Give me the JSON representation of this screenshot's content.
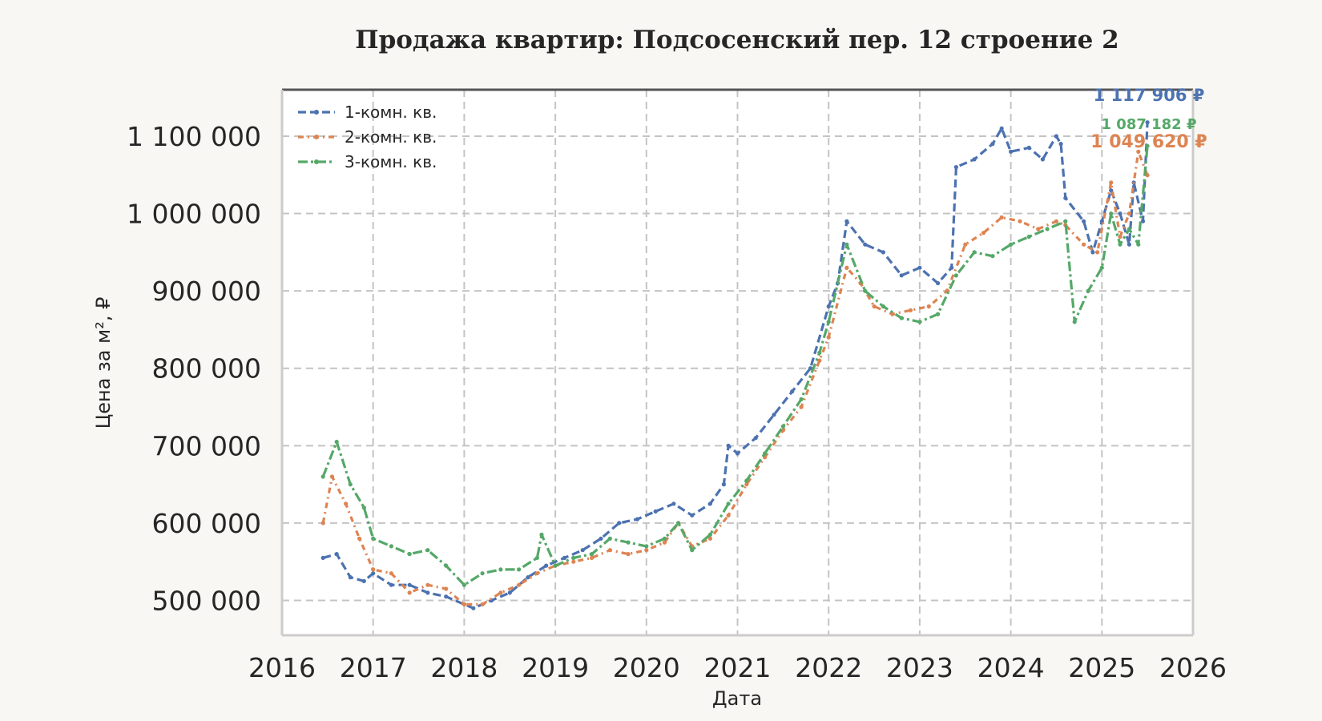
{
  "chart_data": {
    "type": "line",
    "title": "Продажа квартир: Подсосенский пер. 12 строение 2",
    "xlabel": "Дата",
    "ylabel": "Цена за м², ₽",
    "xlim": [
      2016.0,
      2026.0
    ],
    "ylim": [
      455000,
      1160000
    ],
    "x_ticks": [
      "2016",
      "2017",
      "2018",
      "2019",
      "2020",
      "2021",
      "2022",
      "2023",
      "2024",
      "2025",
      "2026"
    ],
    "y_ticks": [
      "500 000",
      "600 000",
      "700 000",
      "800 000",
      "900 000",
      "1 000 000",
      "1 100 000"
    ],
    "y_tick_values": [
      500000,
      600000,
      700000,
      800000,
      900000,
      1000000,
      1100000
    ],
    "grid": true,
    "legend_position": "top-left",
    "series": [
      {
        "name": "1-комн. кв.",
        "color": "#4c72b0",
        "end_label": "1 117 906 ₽",
        "x": [
          2016.45,
          2016.6,
          2016.75,
          2016.9,
          2017.0,
          2017.2,
          2017.4,
          2017.6,
          2017.8,
          2018.0,
          2018.1,
          2018.3,
          2018.5,
          2018.7,
          2018.9,
          2019.1,
          2019.3,
          2019.5,
          2019.7,
          2019.9,
          2020.1,
          2020.3,
          2020.5,
          2020.7,
          2020.85,
          2020.9,
          2021.0,
          2021.2,
          2021.4,
          2021.6,
          2021.8,
          2022.0,
          2022.1,
          2022.2,
          2022.4,
          2022.6,
          2022.8,
          2023.0,
          2023.2,
          2023.35,
          2023.4,
          2023.6,
          2023.8,
          2023.9,
          2024.0,
          2024.2,
          2024.35,
          2024.5,
          2024.55,
          2024.6,
          2024.8,
          2024.9,
          2025.0,
          2025.1,
          2025.2,
          2025.3,
          2025.35,
          2025.45,
          2025.5
        ],
        "y": [
          555000,
          560000,
          530000,
          525000,
          535000,
          520000,
          520000,
          510000,
          505000,
          495000,
          490000,
          500000,
          510000,
          530000,
          545000,
          555000,
          565000,
          580000,
          600000,
          605000,
          615000,
          625000,
          610000,
          625000,
          650000,
          700000,
          690000,
          710000,
          740000,
          770000,
          800000,
          880000,
          910000,
          990000,
          960000,
          950000,
          920000,
          930000,
          910000,
          930000,
          1060000,
          1070000,
          1090000,
          1110000,
          1080000,
          1085000,
          1070000,
          1100000,
          1090000,
          1020000,
          990000,
          950000,
          990000,
          1030000,
          1000000,
          960000,
          1040000,
          990000,
          1117906
        ]
      },
      {
        "name": "2-комн. кв.",
        "color": "#dd8452",
        "end_label": "1 049 620 ₽",
        "x": [
          2016.45,
          2016.55,
          2016.7,
          2016.85,
          2017.0,
          2017.2,
          2017.4,
          2017.6,
          2017.8,
          2018.0,
          2018.2,
          2018.4,
          2018.6,
          2018.8,
          2019.0,
          2019.2,
          2019.4,
          2019.6,
          2019.8,
          2020.0,
          2020.2,
          2020.35,
          2020.5,
          2020.7,
          2020.9,
          2021.1,
          2021.3,
          2021.5,
          2021.7,
          2021.9,
          2022.0,
          2022.2,
          2022.35,
          2022.5,
          2022.7,
          2022.9,
          2023.1,
          2023.3,
          2023.5,
          2023.7,
          2023.9,
          2024.1,
          2024.3,
          2024.5,
          2024.6,
          2024.8,
          2024.95,
          2025.1,
          2025.2,
          2025.3,
          2025.4,
          2025.5
        ],
        "y": [
          600000,
          660000,
          625000,
          580000,
          540000,
          535000,
          510000,
          520000,
          515000,
          495000,
          495000,
          510000,
          520000,
          535000,
          545000,
          550000,
          555000,
          565000,
          560000,
          565000,
          575000,
          600000,
          570000,
          580000,
          610000,
          650000,
          685000,
          720000,
          750000,
          810000,
          840000,
          930000,
          910000,
          880000,
          870000,
          875000,
          880000,
          900000,
          960000,
          975000,
          995000,
          990000,
          980000,
          990000,
          985000,
          960000,
          950000,
          1040000,
          970000,
          1000000,
          1080000,
          1049620
        ]
      },
      {
        "name": "3-комн. кв.",
        "color": "#55a868",
        "end_label": "1 087 182 ₽",
        "x": [
          2016.45,
          2016.6,
          2016.75,
          2016.9,
          2017.0,
          2017.2,
          2017.4,
          2017.6,
          2017.8,
          2018.0,
          2018.2,
          2018.4,
          2018.6,
          2018.8,
          2018.85,
          2019.0,
          2019.2,
          2019.4,
          2019.6,
          2019.8,
          2020.0,
          2020.2,
          2020.35,
          2020.5,
          2020.7,
          2020.9,
          2021.1,
          2021.3,
          2021.5,
          2021.7,
          2021.9,
          2022.0,
          2022.2,
          2022.4,
          2022.6,
          2022.8,
          2023.0,
          2023.2,
          2023.4,
          2023.6,
          2023.8,
          2024.0,
          2024.2,
          2024.4,
          2024.6,
          2024.7,
          2024.85,
          2025.0,
          2025.1,
          2025.2,
          2025.3,
          2025.4,
          2025.5
        ],
        "y": [
          660000,
          705000,
          650000,
          620000,
          580000,
          570000,
          560000,
          565000,
          545000,
          520000,
          535000,
          540000,
          540000,
          555000,
          585000,
          545000,
          555000,
          560000,
          580000,
          575000,
          570000,
          580000,
          600000,
          565000,
          585000,
          625000,
          655000,
          690000,
          725000,
          760000,
          820000,
          860000,
          960000,
          900000,
          880000,
          865000,
          860000,
          870000,
          920000,
          950000,
          945000,
          960000,
          970000,
          980000,
          990000,
          860000,
          900000,
          930000,
          1000000,
          960000,
          980000,
          960000,
          1087182
        ]
      }
    ]
  }
}
